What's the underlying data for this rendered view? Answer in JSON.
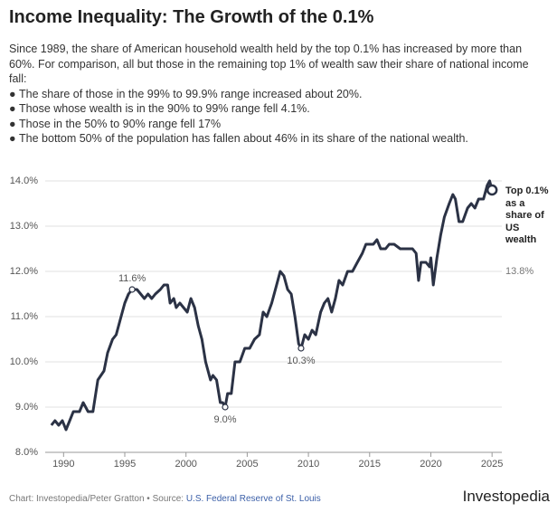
{
  "chart_data": {
    "type": "line",
    "title": "Income Inequality: The Growth of the 0.1%",
    "subtitle": "Since 1989, the share of American household wealth held by the top 0.1% has increased by more than 60%. For comparison, all but those in the remaining top 1% of wealth saw their share of national income fall:",
    "bullets": [
      "The share of those in the 99% to 99.9% range increased about 20%.",
      "Those whose wealth is in the 90% to 99% range fell 4.1%.",
      "Those in the 50% to 90% range fell 17%",
      "The bottom 50% of the population has fallen about 46% in its share of the national wealth."
    ],
    "x": [
      1989.0,
      1989.3,
      1989.6,
      1989.9,
      1990.2,
      1990.5,
      1990.8,
      1991.3,
      1991.6,
      1992.0,
      1992.4,
      1992.8,
      1993.3,
      1993.6,
      1994.0,
      1994.3,
      1994.7,
      1995.0,
      1995.3,
      1995.6,
      1996.0,
      1996.3,
      1996.6,
      1996.9,
      1997.2,
      1997.5,
      1997.9,
      1998.2,
      1998.5,
      1998.7,
      1999.0,
      1999.2,
      1999.5,
      1999.8,
      2000.1,
      2000.4,
      2000.7,
      2001.0,
      2001.3,
      2001.6,
      2002.0,
      2002.2,
      2002.5,
      2002.8,
      2003.0,
      2003.2,
      2003.4,
      2003.7,
      2004.0,
      2004.4,
      2004.8,
      2005.2,
      2005.6,
      2006.0,
      2006.3,
      2006.6,
      2007.0,
      2007.4,
      2007.7,
      2008.0,
      2008.3,
      2008.6,
      2008.9,
      2009.2,
      2009.4,
      2009.7,
      2010.0,
      2010.3,
      2010.6,
      2011.0,
      2011.3,
      2011.6,
      2011.9,
      2012.2,
      2012.5,
      2012.8,
      2013.2,
      2013.6,
      2014.0,
      2014.4,
      2014.7,
      2015.0,
      2015.3,
      2015.6,
      2015.9,
      2016.3,
      2016.6,
      2017.0,
      2017.5,
      2018.0,
      2018.5,
      2018.8,
      2019.0,
      2019.2,
      2019.6,
      2019.9,
      2020.0,
      2020.2,
      2020.5,
      2020.8,
      2021.1,
      2021.5,
      2021.8,
      2022.0,
      2022.3,
      2022.6,
      2023.0,
      2023.3,
      2023.6,
      2023.9,
      2024.3,
      2024.6,
      2024.8,
      2025.0
    ],
    "series": [
      {
        "name": "Top 0.1% as a share of US wealth",
        "color": "#2b3245",
        "values": [
          8.6,
          8.7,
          8.6,
          8.7,
          8.5,
          8.7,
          8.9,
          8.9,
          9.1,
          8.9,
          8.9,
          9.6,
          9.8,
          10.2,
          10.5,
          10.6,
          11.0,
          11.3,
          11.5,
          11.6,
          11.6,
          11.5,
          11.4,
          11.5,
          11.4,
          11.5,
          11.6,
          11.7,
          11.7,
          11.3,
          11.4,
          11.2,
          11.3,
          11.2,
          11.1,
          11.4,
          11.2,
          10.8,
          10.5,
          10.0,
          9.6,
          9.7,
          9.6,
          9.1,
          9.1,
          9.0,
          9.3,
          9.3,
          10.0,
          10.0,
          10.3,
          10.3,
          10.5,
          10.6,
          11.1,
          11.0,
          11.3,
          11.7,
          12.0,
          11.9,
          11.6,
          11.5,
          11.0,
          10.4,
          10.3,
          10.6,
          10.5,
          10.7,
          10.6,
          11.1,
          11.3,
          11.4,
          11.1,
          11.4,
          11.8,
          11.7,
          12.0,
          12.0,
          12.2,
          12.4,
          12.6,
          12.6,
          12.6,
          12.7,
          12.5,
          12.5,
          12.6,
          12.6,
          12.5,
          12.5,
          12.5,
          12.4,
          11.8,
          12.2,
          12.2,
          12.1,
          12.3,
          11.7,
          12.3,
          12.8,
          13.2,
          13.5,
          13.7,
          13.6,
          13.1,
          13.1,
          13.4,
          13.5,
          13.4,
          13.6,
          13.6,
          13.9,
          14.0,
          13.8
        ]
      }
    ],
    "annotations": [
      {
        "x": 1995.6,
        "value": 11.6,
        "label": "11.6%"
      },
      {
        "x": 2003.2,
        "value": 9.0,
        "label": "9.0%"
      },
      {
        "x": 2009.4,
        "value": 10.3,
        "label": "10.3%"
      },
      {
        "x": 2025.0,
        "value": 13.8,
        "label": "13.8%"
      }
    ],
    "xlim": [
      1988.5,
      2025.8
    ],
    "xticks": [
      1990,
      1995,
      2000,
      2005,
      2010,
      2015,
      2020,
      2025
    ],
    "ylim": [
      8.0,
      14.0
    ],
    "yticks": [
      {
        "value": 8.0,
        "label": "8.0%"
      },
      {
        "value": 9.0,
        "label": "9.0%"
      },
      {
        "value": 10.0,
        "label": "10.0%"
      },
      {
        "value": 11.0,
        "label": "11.0%"
      },
      {
        "value": 12.0,
        "label": "12.0%"
      },
      {
        "value": 13.0,
        "label": "13.0%"
      },
      {
        "value": 14.0,
        "label": "14.0%"
      }
    ],
    "grid": true
  },
  "footer": {
    "credit": "Chart: Investopedia/Peter Gratton • Source:",
    "source": "U.S. Federal Reserve of St. Louis",
    "logo": "Investopedia"
  }
}
